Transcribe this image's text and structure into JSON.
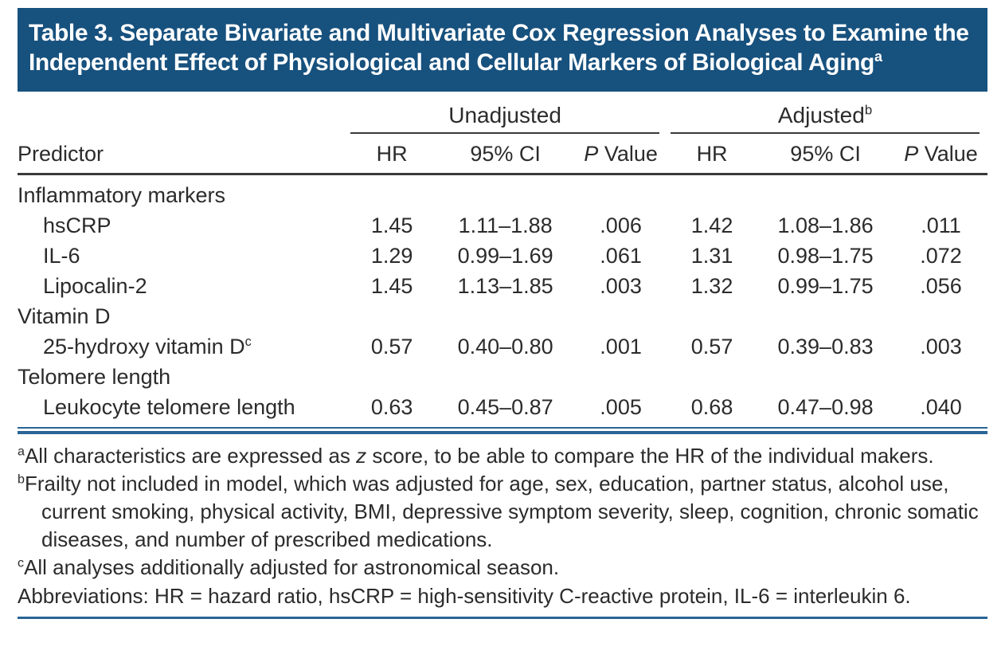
{
  "title": {
    "text": "Table 3. Separate Bivariate and Multivariate Cox Regression Analyses to Examine the Independent Effect of Physiological and Cellular Markers of Biological Aging",
    "sup": "a"
  },
  "table": {
    "predictor_header": "Predictor",
    "groups": [
      {
        "label": "Unadjusted",
        "sup": ""
      },
      {
        "label": "Adjusted",
        "sup": "b"
      }
    ],
    "columns": {
      "hr": "HR",
      "ci": "95% CI",
      "p_italic": "P",
      "p_rest": " Value"
    },
    "rows": [
      {
        "label": "Inflammatory markers",
        "group": true
      },
      {
        "label": "hsCRP",
        "values": [
          "1.45",
          "1.11–1.88",
          ".006",
          "1.42",
          "1.08–1.86",
          ".011"
        ]
      },
      {
        "label": "IL-6",
        "values": [
          "1.29",
          "0.99–1.69",
          ".061",
          "1.31",
          "0.98–1.75",
          ".072"
        ]
      },
      {
        "label": "Lipocalin-2",
        "values": [
          "1.45",
          "1.13–1.85",
          ".003",
          "1.32",
          "0.99–1.75",
          ".056"
        ]
      },
      {
        "label": "Vitamin D",
        "group": true
      },
      {
        "label": "25-hydroxy vitamin D",
        "sup": "c",
        "values": [
          "0.57",
          "0.40–0.80",
          ".001",
          "0.57",
          "0.39–0.83",
          ".003"
        ]
      },
      {
        "label": "Telomere length",
        "group": true
      },
      {
        "label": "Leukocyte telomere length",
        "values": [
          "0.63",
          "0.45–0.87",
          ".005",
          "0.68",
          "0.47–0.98",
          ".040"
        ]
      }
    ]
  },
  "footnotes": [
    {
      "marker": "a",
      "pre": "All characteristics are expressed as ",
      "italic": "z",
      "post": " score, to be able to compare the HR of the individual makers."
    },
    {
      "marker": "b",
      "pre": "Frailty not included in model, which was adjusted for age, sex, education, partner status, alcohol use, current smoking, physical activity, BMI, depressive symptom severity, sleep, cognition, chronic somatic diseases, and number of prescribed medications.",
      "italic": "",
      "post": ""
    },
    {
      "marker": "c",
      "pre": "All analyses additionally adjusted for astronomical season.",
      "italic": "",
      "post": ""
    }
  ],
  "abbreviations": "Abbreviations: HR = hazard ratio, hsCRP = high-sensitivity C-reactive protein, IL-6 = interleukin 6.",
  "colors": {
    "band": "#17517e",
    "rule_blue": "#2a6496",
    "rule_dark": "#3a3a3a",
    "text": "#2b2b2b"
  }
}
